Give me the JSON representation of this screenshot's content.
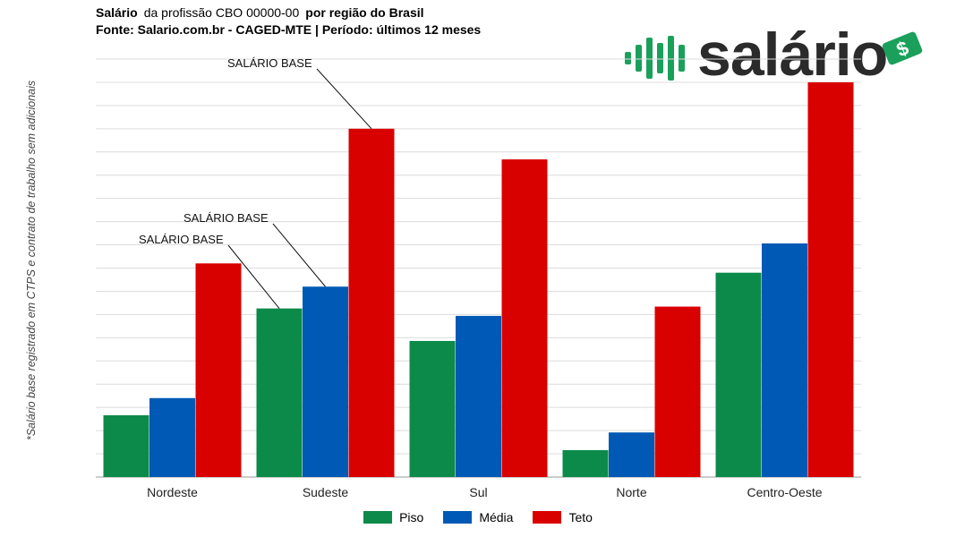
{
  "header": {
    "title_prefix": "Salário",
    "title_middle": "da profissão CBO 00000-00",
    "title_suffix": "por região do Brasil",
    "source_line": "Fonte: Salario.com.br - CAGED-MTE | Período: últimos 12 meses"
  },
  "logo": {
    "text": "salário",
    "icon": "bar-signal-icon",
    "badge": "dollar-bill-icon",
    "color": "#2b2b2b",
    "accent": "#1aa05a"
  },
  "side_note": "*Salário base registrado em CTPS e contrato de trabalho sem adicionais",
  "chart_data": {
    "type": "bar",
    "categories": [
      "Nordeste",
      "Sudeste",
      "Sul",
      "Norte",
      "Centro-Oeste"
    ],
    "series": [
      {
        "name": "Piso",
        "color": "#0c8a4a",
        "values": [
          13.3,
          36.3,
          29.3,
          5.8,
          44
        ]
      },
      {
        "name": "Média",
        "color": "#0059b5",
        "values": [
          17,
          41,
          34.7,
          9.6,
          50.3
        ]
      },
      {
        "name": "Teto",
        "color": "#d90000",
        "values": [
          46,
          75,
          68.4,
          36.7,
          85
        ]
      }
    ],
    "ylim": [
      0,
      90
    ],
    "y_gridlines": 18,
    "grid": true,
    "legend_position": "bottom",
    "annotations": [
      {
        "text": "SALÁRIO BASE",
        "category": "Sudeste",
        "series": "Teto"
      },
      {
        "text": "SALÁRIO BASE",
        "category": "Sudeste",
        "series": "Média"
      },
      {
        "text": "SALÁRIO BASE",
        "category": "Sudeste",
        "series": "Piso"
      }
    ]
  }
}
